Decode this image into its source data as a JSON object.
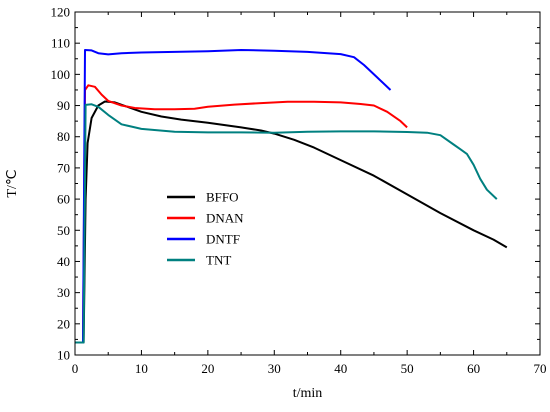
{
  "chart_data": {
    "type": "line",
    "xlabel": "t/min",
    "ylabel": "T/℃",
    "xlim": [
      0,
      70
    ],
    "ylim": [
      10,
      120
    ],
    "x_ticks": [
      0,
      10,
      20,
      30,
      40,
      50,
      60,
      70
    ],
    "y_ticks": [
      10,
      20,
      30,
      40,
      50,
      60,
      70,
      80,
      90,
      100,
      110,
      120
    ],
    "grid": false,
    "legend_position": "center-left",
    "series": [
      {
        "name": "BFFO",
        "color": "#000000",
        "points": [
          [
            0,
            14
          ],
          [
            1.3,
            14
          ],
          [
            1.6,
            60
          ],
          [
            1.9,
            78
          ],
          [
            2.5,
            86
          ],
          [
            3.5,
            90
          ],
          [
            4.5,
            91.3
          ],
          [
            6,
            91
          ],
          [
            8,
            89.5
          ],
          [
            10,
            88
          ],
          [
            13,
            86.5
          ],
          [
            16,
            85.5
          ],
          [
            20,
            84.5
          ],
          [
            25,
            83
          ],
          [
            28,
            82
          ],
          [
            30,
            81
          ],
          [
            33,
            79
          ],
          [
            36,
            76.5
          ],
          [
            40,
            72.5
          ],
          [
            45,
            67.5
          ],
          [
            50,
            61.5
          ],
          [
            55,
            55.5
          ],
          [
            60,
            50
          ],
          [
            63,
            47
          ],
          [
            65,
            44.5
          ]
        ]
      },
      {
        "name": "DNAN",
        "color": "#ff0000",
        "points": [
          [
            0,
            14
          ],
          [
            1.2,
            14
          ],
          [
            1.5,
            95
          ],
          [
            2,
            96.5
          ],
          [
            3,
            96
          ],
          [
            4,
            93.5
          ],
          [
            5,
            91.5
          ],
          [
            7,
            90
          ],
          [
            9,
            89.2
          ],
          [
            12,
            88.8
          ],
          [
            15,
            88.8
          ],
          [
            18,
            89
          ],
          [
            20,
            89.6
          ],
          [
            24,
            90.3
          ],
          [
            28,
            90.8
          ],
          [
            32,
            91.2
          ],
          [
            36,
            91.2
          ],
          [
            40,
            91
          ],
          [
            43,
            90.5
          ],
          [
            45,
            90
          ],
          [
            47,
            88
          ],
          [
            49,
            85
          ],
          [
            50,
            83
          ]
        ]
      },
      {
        "name": "DNTF",
        "color": "#0000ff",
        "points": [
          [
            0,
            14
          ],
          [
            1.2,
            14
          ],
          [
            1.5,
            107.8
          ],
          [
            2.5,
            107.7
          ],
          [
            3.5,
            106.8
          ],
          [
            5,
            106.4
          ],
          [
            7,
            106.8
          ],
          [
            10,
            107
          ],
          [
            15,
            107.2
          ],
          [
            20,
            107.4
          ],
          [
            25,
            107.8
          ],
          [
            30,
            107.6
          ],
          [
            35,
            107.2
          ],
          [
            40,
            106.5
          ],
          [
            42,
            105.5
          ],
          [
            43.5,
            103
          ],
          [
            45.5,
            99
          ],
          [
            47.5,
            95
          ]
        ]
      },
      {
        "name": "TNT",
        "color": "#008080",
        "points": [
          [
            0,
            14
          ],
          [
            1.3,
            14
          ],
          [
            1.6,
            90.2
          ],
          [
            2.5,
            90.4
          ],
          [
            3.5,
            89.6
          ],
          [
            5,
            87
          ],
          [
            7,
            84
          ],
          [
            10,
            82.5
          ],
          [
            15,
            81.6
          ],
          [
            20,
            81.4
          ],
          [
            25,
            81.4
          ],
          [
            30,
            81.3
          ],
          [
            35,
            81.6
          ],
          [
            40,
            81.7
          ],
          [
            45,
            81.7
          ],
          [
            50,
            81.5
          ],
          [
            53,
            81.3
          ],
          [
            55,
            80.5
          ],
          [
            57,
            77.5
          ],
          [
            58,
            76
          ],
          [
            59,
            74.5
          ],
          [
            60,
            71
          ],
          [
            61,
            66.5
          ],
          [
            62,
            63
          ],
          [
            63.5,
            60
          ]
        ]
      }
    ]
  }
}
